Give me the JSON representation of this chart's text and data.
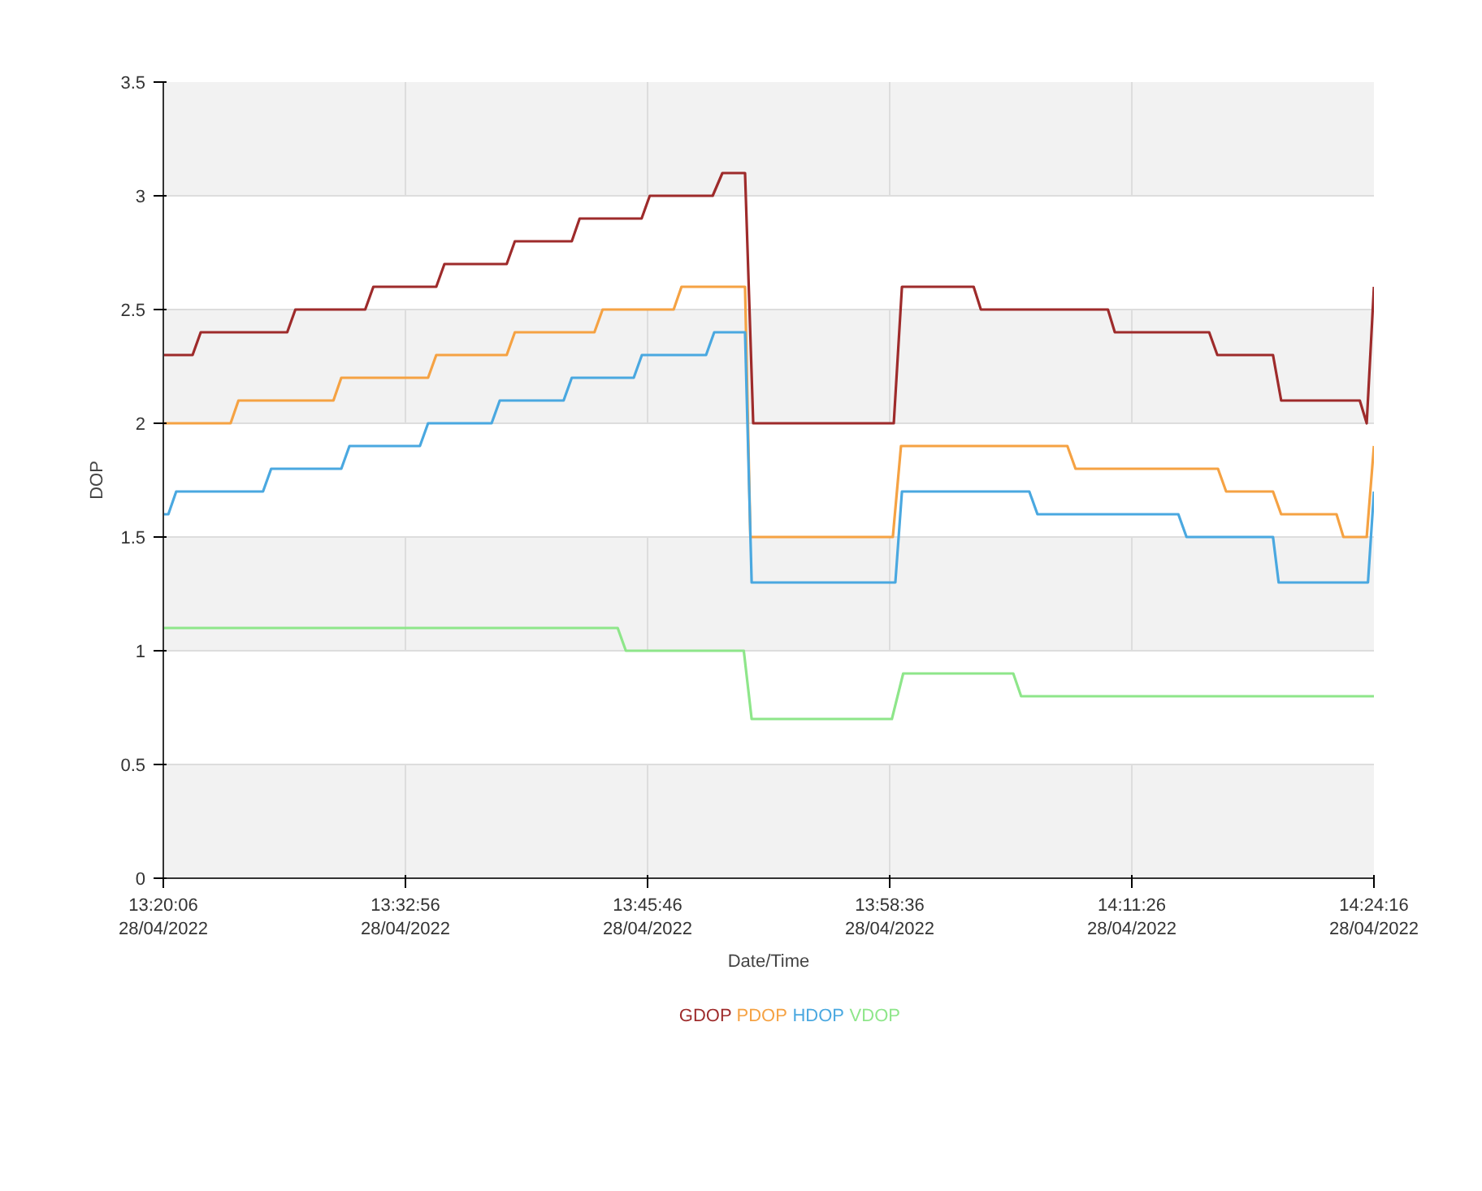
{
  "chart_data": {
    "type": "line",
    "xlabel": "Date/Time",
    "ylabel": "DOP",
    "xlim": [
      "2022-04-28T13:20:06",
      "2022-04-28T14:24:16"
    ],
    "ylim": [
      0,
      3.5
    ],
    "xticks": [
      {
        "value": "2022-04-28T13:20:06",
        "label": "13:20:06\n28/04/2022"
      },
      {
        "value": "2022-04-28T13:32:56",
        "label": "13:32:56\n28/04/2022"
      },
      {
        "value": "2022-04-28T13:45:46",
        "label": "13:45:46\n28/04/2022"
      },
      {
        "value": "2022-04-28T13:58:36",
        "label": "13:58:36\n28/04/2022"
      },
      {
        "value": "2022-04-28T14:11:26",
        "label": "14:11:26\n28/04/2022"
      },
      {
        "value": "2022-04-28T14:24:16",
        "label": "14:24:16\n28/04/2022"
      }
    ],
    "yticks": [
      0,
      0.5,
      1,
      1.5,
      2,
      2.5,
      3,
      3.5
    ],
    "grid": true,
    "legend": "bottom",
    "line_style": "solid",
    "series": [
      {
        "name": "GDOP",
        "color": "#9e2b2b",
        "x": [
          "2022-04-28T13:20:06",
          "2022-04-28T13:21:39",
          "2022-04-28T13:22:05",
          "2022-04-28T13:26:40",
          "2022-04-28T13:27:06",
          "2022-04-28T13:30:48",
          "2022-04-28T13:31:14",
          "2022-04-28T13:34:34",
          "2022-04-28T13:35:00",
          "2022-04-28T13:38:18",
          "2022-04-28T13:38:44",
          "2022-04-28T13:41:45",
          "2022-04-28T13:42:10",
          "2022-04-28T13:45:27",
          "2022-04-28T13:45:53",
          "2022-04-28T13:49:13",
          "2022-04-28T13:49:44",
          "2022-04-28T13:50:56",
          "2022-04-28T13:51:22",
          "2022-04-28T13:58:49",
          "2022-04-28T13:59:15",
          "2022-04-28T14:03:03",
          "2022-04-28T14:03:26",
          "2022-04-28T14:10:10",
          "2022-04-28T14:10:32",
          "2022-04-28T14:15:32",
          "2022-04-28T14:15:58",
          "2022-04-28T14:18:55",
          "2022-04-28T14:19:21",
          "2022-04-28T14:23:31",
          "2022-04-28T14:23:53",
          "2022-04-28T14:24:16"
        ],
        "values": [
          2.3,
          2.3,
          2.4,
          2.4,
          2.5,
          2.5,
          2.6,
          2.6,
          2.7,
          2.7,
          2.8,
          2.8,
          2.9,
          2.9,
          3.0,
          3.0,
          3.1,
          3.1,
          2.0,
          2.0,
          2.6,
          2.6,
          2.5,
          2.5,
          2.4,
          2.4,
          2.3,
          2.3,
          2.1,
          2.1,
          2.0,
          2.6
        ]
      },
      {
        "name": "PDOP",
        "color": "#f5a243",
        "x": [
          "2022-04-28T13:20:06",
          "2022-04-28T13:23:40",
          "2022-04-28T13:24:05",
          "2022-04-28T13:29:07",
          "2022-04-28T13:29:32",
          "2022-04-28T13:34:08",
          "2022-04-28T13:34:34",
          "2022-04-28T13:38:18",
          "2022-04-28T13:38:44",
          "2022-04-28T13:42:57",
          "2022-04-28T13:43:23",
          "2022-04-28T13:47:09",
          "2022-04-28T13:47:34",
          "2022-04-28T13:50:56",
          "2022-04-28T13:51:13",
          "2022-04-28T13:58:46",
          "2022-04-28T13:59:12",
          "2022-04-28T14:08:01",
          "2022-04-28T14:08:27",
          "2022-04-28T14:16:00",
          "2022-04-28T14:16:26",
          "2022-04-28T14:18:55",
          "2022-04-28T14:19:21",
          "2022-04-28T14:22:17",
          "2022-04-28T14:22:39",
          "2022-04-28T14:23:53",
          "2022-04-28T14:24:16"
        ],
        "values": [
          2.0,
          2.0,
          2.1,
          2.1,
          2.2,
          2.2,
          2.3,
          2.3,
          2.4,
          2.4,
          2.5,
          2.5,
          2.6,
          2.6,
          1.5,
          1.5,
          1.9,
          1.9,
          1.8,
          1.8,
          1.7,
          1.7,
          1.6,
          1.6,
          1.5,
          1.5,
          1.9
        ]
      },
      {
        "name": "HDOP",
        "color": "#4aa8e0",
        "x": [
          "2022-04-28T13:20:06",
          "2022-04-28T13:20:22",
          "2022-04-28T13:20:47",
          "2022-04-28T13:25:23",
          "2022-04-28T13:25:49",
          "2022-04-28T13:29:32",
          "2022-04-28T13:29:58",
          "2022-04-28T13:33:42",
          "2022-04-28T13:34:08",
          "2022-04-28T13:37:30",
          "2022-04-28T13:37:56",
          "2022-04-28T13:41:19",
          "2022-04-28T13:41:45",
          "2022-04-28T13:45:02",
          "2022-04-28T13:45:28",
          "2022-04-28T13:48:52",
          "2022-04-28T13:49:18",
          "2022-04-28T13:50:56",
          "2022-04-28T13:51:17",
          "2022-04-28T13:58:54",
          "2022-04-28T13:59:15",
          "2022-04-28T14:06:00",
          "2022-04-28T14:06:26",
          "2022-04-28T14:13:54",
          "2022-04-28T14:14:20",
          "2022-04-28T14:18:55",
          "2022-04-28T14:19:13",
          "2022-04-28T14:23:57",
          "2022-04-28T14:24:16"
        ],
        "values": [
          1.6,
          1.6,
          1.7,
          1.7,
          1.8,
          1.8,
          1.9,
          1.9,
          2.0,
          2.0,
          2.1,
          2.1,
          2.2,
          2.2,
          2.3,
          2.3,
          2.4,
          2.4,
          1.3,
          1.3,
          1.7,
          1.7,
          1.6,
          1.6,
          1.5,
          1.5,
          1.3,
          1.3,
          1.7
        ]
      },
      {
        "name": "VDOP",
        "color": "#8ee68a",
        "x": [
          "2022-04-28T13:20:06",
          "2022-04-28T13:44:11",
          "2022-04-28T13:44:37",
          "2022-04-28T13:50:52",
          "2022-04-28T13:51:17",
          "2022-04-28T13:58:43",
          "2022-04-28T13:59:19",
          "2022-04-28T14:05:09",
          "2022-04-28T14:05:34",
          "2022-04-28T14:24:16"
        ],
        "values": [
          1.1,
          1.1,
          1.0,
          1.0,
          0.7,
          0.7,
          0.9,
          0.9,
          0.8,
          0.8
        ]
      }
    ]
  }
}
